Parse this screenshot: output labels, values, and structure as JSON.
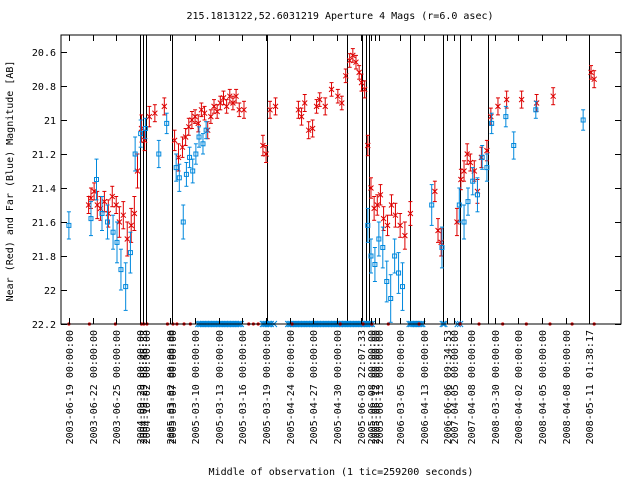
{
  "chart_data": {
    "type": "scatter",
    "title": "215.1813122,52.6031219   Aperture 4 Mags (r=6.0 asec)",
    "ylabel": "Near (Red) and Far (Blue) Magnitude [AB]",
    "xlabel": "Middle of observation (1 tic=259200 seconds)",
    "xlim": [
      0,
      71
    ],
    "ylim": [
      22.2,
      20.5
    ],
    "y_reversed": true,
    "grid": false,
    "yticks": [
      20.6,
      20.8,
      21,
      21.2,
      21.4,
      21.6,
      21.8,
      22,
      22.2
    ],
    "ytick_labels": [
      "20.6",
      "20.8",
      "21",
      "21.2",
      "21.4",
      "21.6",
      "21.8",
      "22",
      "22.2"
    ],
    "xticks": [
      {
        "x": 1,
        "label": "2003-06-19 00:00:00"
      },
      {
        "x": 4,
        "label": "2003-06-22 00:00:00"
      },
      {
        "x": 7,
        "label": "2003-06-25 00:00:00"
      },
      {
        "x": 10,
        "label": "2004-09-29 00:00:00"
      },
      {
        "x": 10.4,
        "label": "2004-09-29 08:46:33"
      },
      {
        "x": 10.8,
        "label": "2004-10-02 00:00:00"
      },
      {
        "x": 13.8,
        "label": "2005-03-02 00:00:00"
      },
      {
        "x": 14.1,
        "label": "2005-03-07 00:00:00"
      },
      {
        "x": 17,
        "label": "2005-03-10 00:00:00"
      },
      {
        "x": 20,
        "label": "2005-03-13 00:00:00"
      },
      {
        "x": 23,
        "label": "2005-03-16 00:00:00"
      },
      {
        "x": 26,
        "label": "2005-03-19 00:00:00"
      },
      {
        "x": 29,
        "label": "2005-04-24 00:00:00"
      },
      {
        "x": 32,
        "label": "2005-04-27 00:00:00"
      },
      {
        "x": 35,
        "label": "2005-04-30 00:00:00"
      },
      {
        "x": 38,
        "label": "2005-06-03 22:07:33"
      },
      {
        "x": 39.3,
        "label": "2005-06-08 00:00:00"
      },
      {
        "x": 39.8,
        "label": "2005-06-12 00:00:00"
      },
      {
        "x": 40.3,
        "label": "2005-06-13 00:00:00"
      },
      {
        "x": 43,
        "label": "2006-03-05 00:00:00"
      },
      {
        "x": 46,
        "label": "2006-04-13 00:00:00"
      },
      {
        "x": 49,
        "label": "2006-06-06 09:34:53"
      },
      {
        "x": 49.8,
        "label": "2007-04-05 00:00:00"
      },
      {
        "x": 52,
        "label": "2007-04-08 00:00:00"
      },
      {
        "x": 55,
        "label": "2008-03-30 00:00:00"
      },
      {
        "x": 58,
        "label": "2008-04-02 00:00:00"
      },
      {
        "x": 61,
        "label": "2008-04-05 00:00:00"
      },
      {
        "x": 64,
        "label": "2008-04-08 00:00:00"
      },
      {
        "x": 67,
        "label": "2008-05-11 01:38:17"
      }
    ],
    "vlines": [
      10,
      10.4,
      10.8,
      14.1,
      26.1,
      36.3,
      38.2,
      38.7,
      39,
      44.2,
      48.4,
      50.6,
      54.1,
      66.9
    ],
    "series": [
      {
        "color": "#dd0000",
        "marker": "x",
        "points": [
          {
            "x": 3.5,
            "y": 21.5,
            "err": 0.05
          },
          {
            "x": 3.8,
            "y": 21.46,
            "err": 0.06
          },
          {
            "x": 4.2,
            "y": 21.42,
            "err": 0.05
          },
          {
            "x": 4.6,
            "y": 21.5,
            "err": 0.08
          },
          {
            "x": 5.0,
            "y": 21.52,
            "err": 0.07
          },
          {
            "x": 5.5,
            "y": 21.48,
            "err": 0.06
          },
          {
            "x": 6.0,
            "y": 21.55,
            "err": 0.08
          },
          {
            "x": 6.5,
            "y": 21.45,
            "err": 0.06
          },
          {
            "x": 7.0,
            "y": 21.5,
            "err": 0.05
          },
          {
            "x": 7.4,
            "y": 21.6,
            "err": 0.09
          },
          {
            "x": 7.9,
            "y": 21.56,
            "err": 0.08
          },
          {
            "x": 8.4,
            "y": 21.7,
            "err": 0.1
          },
          {
            "x": 8.9,
            "y": 21.62,
            "err": 0.1
          },
          {
            "x": 9.3,
            "y": 21.55,
            "err": 0.1
          },
          {
            "x": 9.7,
            "y": 21.3,
            "err": 0.1
          },
          {
            "x": 10.2,
            "y": 21.05,
            "err": 0.08
          },
          {
            "x": 10.6,
            "y": 21.12,
            "err": 0.06
          },
          {
            "x": 11.2,
            "y": 20.98,
            "err": 0.06
          },
          {
            "x": 11.9,
            "y": 20.96,
            "err": 0.05
          },
          {
            "x": 13.1,
            "y": 20.92,
            "err": 0.05
          },
          {
            "x": 14.4,
            "y": 21.12,
            "err": 0.06
          },
          {
            "x": 14.9,
            "y": 21.22,
            "err": 0.08
          },
          {
            "x": 15.4,
            "y": 21.16,
            "err": 0.06
          },
          {
            "x": 15.8,
            "y": 21.1,
            "err": 0.05
          },
          {
            "x": 16.2,
            "y": 21.04,
            "err": 0.05
          },
          {
            "x": 16.6,
            "y": 21.0,
            "err": 0.05
          },
          {
            "x": 17.0,
            "y": 20.98,
            "err": 0.04
          },
          {
            "x": 17.4,
            "y": 21.02,
            "err": 0.05
          },
          {
            "x": 17.8,
            "y": 20.94,
            "err": 0.04
          },
          {
            "x": 18.2,
            "y": 20.96,
            "err": 0.04
          },
          {
            "x": 18.6,
            "y": 21.06,
            "err": 0.05
          },
          {
            "x": 19.0,
            "y": 20.98,
            "err": 0.04
          },
          {
            "x": 19.4,
            "y": 20.92,
            "err": 0.04
          },
          {
            "x": 19.8,
            "y": 20.95,
            "err": 0.04
          },
          {
            "x": 20.2,
            "y": 20.9,
            "err": 0.04
          },
          {
            "x": 20.6,
            "y": 20.87,
            "err": 0.04
          },
          {
            "x": 21.0,
            "y": 20.92,
            "err": 0.04
          },
          {
            "x": 21.4,
            "y": 20.86,
            "err": 0.04
          },
          {
            "x": 21.8,
            "y": 20.9,
            "err": 0.04
          },
          {
            "x": 22.2,
            "y": 20.86,
            "err": 0.04
          },
          {
            "x": 22.6,
            "y": 20.94,
            "err": 0.04
          },
          {
            "x": 23.2,
            "y": 20.94,
            "err": 0.05
          },
          {
            "x": 25.6,
            "y": 21.15,
            "err": 0.06
          },
          {
            "x": 26.0,
            "y": 21.2,
            "err": 0.05
          },
          {
            "x": 26.5,
            "y": 20.94,
            "err": 0.05
          },
          {
            "x": 27.2,
            "y": 20.92,
            "err": 0.05
          },
          {
            "x": 30.1,
            "y": 20.94,
            "err": 0.05
          },
          {
            "x": 30.5,
            "y": 20.98,
            "err": 0.05
          },
          {
            "x": 30.9,
            "y": 20.9,
            "err": 0.05
          },
          {
            "x": 31.4,
            "y": 21.06,
            "err": 0.05
          },
          {
            "x": 31.9,
            "y": 21.05,
            "err": 0.05
          },
          {
            "x": 32.4,
            "y": 20.92,
            "err": 0.04
          },
          {
            "x": 32.8,
            "y": 20.88,
            "err": 0.04
          },
          {
            "x": 33.5,
            "y": 20.92,
            "err": 0.05
          },
          {
            "x": 34.3,
            "y": 20.82,
            "err": 0.04
          },
          {
            "x": 35.1,
            "y": 20.86,
            "err": 0.04
          },
          {
            "x": 35.6,
            "y": 20.9,
            "err": 0.04
          },
          {
            "x": 36.1,
            "y": 20.74,
            "err": 0.04
          },
          {
            "x": 36.6,
            "y": 20.65,
            "err": 0.04
          },
          {
            "x": 37.0,
            "y": 20.62,
            "err": 0.04
          },
          {
            "x": 37.4,
            "y": 20.66,
            "err": 0.04
          },
          {
            "x": 37.8,
            "y": 20.72,
            "err": 0.04
          },
          {
            "x": 38.1,
            "y": 20.78,
            "err": 0.05
          },
          {
            "x": 38.5,
            "y": 20.82,
            "err": 0.05
          },
          {
            "x": 38.9,
            "y": 21.15,
            "err": 0.06
          },
          {
            "x": 39.3,
            "y": 21.4,
            "err": 0.06
          },
          {
            "x": 39.7,
            "y": 21.52,
            "err": 0.07
          },
          {
            "x": 40.1,
            "y": 21.5,
            "err": 0.06
          },
          {
            "x": 40.5,
            "y": 21.44,
            "err": 0.06
          },
          {
            "x": 40.9,
            "y": 21.58,
            "err": 0.07
          },
          {
            "x": 41.4,
            "y": 21.62,
            "err": 0.06
          },
          {
            "x": 41.9,
            "y": 21.5,
            "err": 0.06
          },
          {
            "x": 42.4,
            "y": 21.56,
            "err": 0.07
          },
          {
            "x": 43.0,
            "y": 21.62,
            "err": 0.07
          },
          {
            "x": 43.6,
            "y": 21.68,
            "err": 0.08
          },
          {
            "x": 44.3,
            "y": 21.55,
            "err": 0.07
          },
          {
            "x": 47.4,
            "y": 21.42,
            "err": 0.06
          },
          {
            "x": 47.8,
            "y": 21.65,
            "err": 0.07
          },
          {
            "x": 48.2,
            "y": 21.72,
            "err": 0.08
          },
          {
            "x": 50.2,
            "y": 21.6,
            "err": 0.08
          },
          {
            "x": 50.7,
            "y": 21.35,
            "err": 0.06
          },
          {
            "x": 51.1,
            "y": 21.3,
            "err": 0.06
          },
          {
            "x": 51.5,
            "y": 21.2,
            "err": 0.06
          },
          {
            "x": 51.9,
            "y": 21.25,
            "err": 0.05
          },
          {
            "x": 52.4,
            "y": 21.3,
            "err": 0.06
          },
          {
            "x": 52.8,
            "y": 21.42,
            "err": 0.07
          },
          {
            "x": 53.3,
            "y": 21.22,
            "err": 0.06
          },
          {
            "x": 54.0,
            "y": 21.18,
            "err": 0.06
          },
          {
            "x": 54.5,
            "y": 20.98,
            "err": 0.05
          },
          {
            "x": 55.4,
            "y": 20.92,
            "err": 0.05
          },
          {
            "x": 56.5,
            "y": 20.88,
            "err": 0.05
          },
          {
            "x": 58.4,
            "y": 20.88,
            "err": 0.05
          },
          {
            "x": 60.3,
            "y": 20.9,
            "err": 0.05
          },
          {
            "x": 62.4,
            "y": 20.86,
            "err": 0.05
          },
          {
            "x": 67.2,
            "y": 20.72,
            "err": 0.04
          },
          {
            "x": 67.6,
            "y": 20.76,
            "err": 0.05
          }
        ]
      },
      {
        "color": "#0088dd",
        "marker": "square",
        "points": [
          {
            "x": 1.0,
            "y": 21.62,
            "err": 0.08
          },
          {
            "x": 3.8,
            "y": 21.58,
            "err": 0.1
          },
          {
            "x": 4.5,
            "y": 21.35,
            "err": 0.12
          },
          {
            "x": 5.2,
            "y": 21.55,
            "err": 0.1
          },
          {
            "x": 5.9,
            "y": 21.6,
            "err": 0.1
          },
          {
            "x": 6.6,
            "y": 21.66,
            "err": 0.1
          },
          {
            "x": 7.1,
            "y": 21.72,
            "err": 0.12
          },
          {
            "x": 7.6,
            "y": 21.88,
            "err": 0.12
          },
          {
            "x": 8.2,
            "y": 21.98,
            "err": 0.14
          },
          {
            "x": 8.8,
            "y": 21.78,
            "err": 0.12
          },
          {
            "x": 9.4,
            "y": 21.2,
            "err": 0.1
          },
          {
            "x": 10.1,
            "y": 21.08,
            "err": 0.08
          },
          {
            "x": 10.7,
            "y": 21.05,
            "err": 0.06
          },
          {
            "x": 12.4,
            "y": 21.2,
            "err": 0.08
          },
          {
            "x": 13.4,
            "y": 21.02,
            "err": 0.06
          },
          {
            "x": 14.6,
            "y": 21.28,
            "err": 0.08
          },
          {
            "x": 15.0,
            "y": 21.34,
            "err": 0.08
          },
          {
            "x": 15.5,
            "y": 21.6,
            "err": 0.1
          },
          {
            "x": 15.9,
            "y": 21.32,
            "err": 0.07
          },
          {
            "x": 16.3,
            "y": 21.22,
            "err": 0.06
          },
          {
            "x": 16.7,
            "y": 21.3,
            "err": 0.07
          },
          {
            "x": 17.1,
            "y": 21.2,
            "err": 0.06
          },
          {
            "x": 17.5,
            "y": 21.1,
            "err": 0.06
          },
          {
            "x": 18.0,
            "y": 21.14,
            "err": 0.06
          },
          {
            "x": 18.4,
            "y": 21.06,
            "err": 0.05
          },
          {
            "x": 38.9,
            "y": 21.62,
            "err": 0.1
          },
          {
            "x": 39.3,
            "y": 21.8,
            "err": 0.1
          },
          {
            "x": 39.8,
            "y": 21.85,
            "err": 0.1
          },
          {
            "x": 40.3,
            "y": 21.7,
            "err": 0.1
          },
          {
            "x": 40.8,
            "y": 21.75,
            "err": 0.12
          },
          {
            "x": 41.3,
            "y": 21.95,
            "err": 0.12
          },
          {
            "x": 41.8,
            "y": 22.05,
            "err": 0.14
          },
          {
            "x": 42.3,
            "y": 21.8,
            "err": 0.1
          },
          {
            "x": 42.8,
            "y": 21.9,
            "err": 0.12
          },
          {
            "x": 43.3,
            "y": 21.98,
            "err": 0.14
          },
          {
            "x": 47.0,
            "y": 21.5,
            "err": 0.12
          },
          {
            "x": 48.3,
            "y": 21.75,
            "err": 0.12
          },
          {
            "x": 50.5,
            "y": 21.5,
            "err": 0.1
          },
          {
            "x": 51.1,
            "y": 21.6,
            "err": 0.1
          },
          {
            "x": 51.6,
            "y": 21.48,
            "err": 0.08
          },
          {
            "x": 52.2,
            "y": 21.36,
            "err": 0.08
          },
          {
            "x": 52.8,
            "y": 21.44,
            "err": 0.1
          },
          {
            "x": 53.4,
            "y": 21.22,
            "err": 0.07
          },
          {
            "x": 54.0,
            "y": 21.28,
            "err": 0.08
          },
          {
            "x": 54.6,
            "y": 21.02,
            "err": 0.06
          },
          {
            "x": 56.4,
            "y": 20.98,
            "err": 0.06
          },
          {
            "x": 57.4,
            "y": 21.15,
            "err": 0.08
          },
          {
            "x": 60.2,
            "y": 20.94,
            "err": 0.05
          },
          {
            "x": 66.2,
            "y": 21.0,
            "err": 0.06
          }
        ]
      }
    ],
    "limit_markers": {
      "y": 22.2,
      "red_x": [
        1.0,
        3.6,
        6.9,
        10.2,
        10.5,
        10.9,
        13.5,
        14.2,
        14.7,
        15.6,
        16.4,
        23.8,
        24.4,
        25.0,
        29.3,
        35.4,
        38.3,
        39.4,
        41.5,
        45.4,
        50.6,
        53.0,
        56.0,
        59.0,
        62.0,
        64.8,
        67.6
      ],
      "blue_x": [
        17.4,
        17.6,
        17.8,
        18.0,
        18.2,
        18.4,
        18.6,
        18.8,
        19.0,
        19.2,
        19.4,
        19.6,
        19.8,
        20.0,
        20.2,
        20.4,
        20.6,
        20.8,
        21.0,
        21.2,
        21.4,
        21.6,
        21.8,
        22.0,
        22.2,
        22.4,
        22.6,
        22.8,
        25.6,
        25.8,
        26.0,
        26.2,
        26.4,
        26.6,
        27.0,
        28.8,
        29.0,
        29.2,
        29.4,
        29.6,
        29.8,
        30.0,
        30.2,
        30.4,
        30.6,
        30.8,
        31.0,
        31.2,
        31.4,
        31.6,
        31.8,
        32.0,
        32.2,
        32.4,
        32.6,
        32.8,
        33.0,
        33.2,
        33.4,
        33.6,
        33.8,
        34.0,
        34.2,
        34.4,
        34.6,
        34.8,
        35.0,
        35.2,
        35.4,
        35.6,
        35.8,
        36.0,
        36.2,
        36.4,
        36.6,
        36.8,
        37.0,
        37.2,
        37.4,
        37.6,
        37.8,
        38.0,
        38.2,
        38.4,
        38.6,
        38.8,
        39.0,
        39.2,
        39.4,
        44.2,
        44.4,
        44.6,
        44.8,
        45.0,
        45.2,
        45.4,
        45.6,
        45.8,
        48.4,
        48.6,
        50.3,
        50.6
      ]
    }
  }
}
